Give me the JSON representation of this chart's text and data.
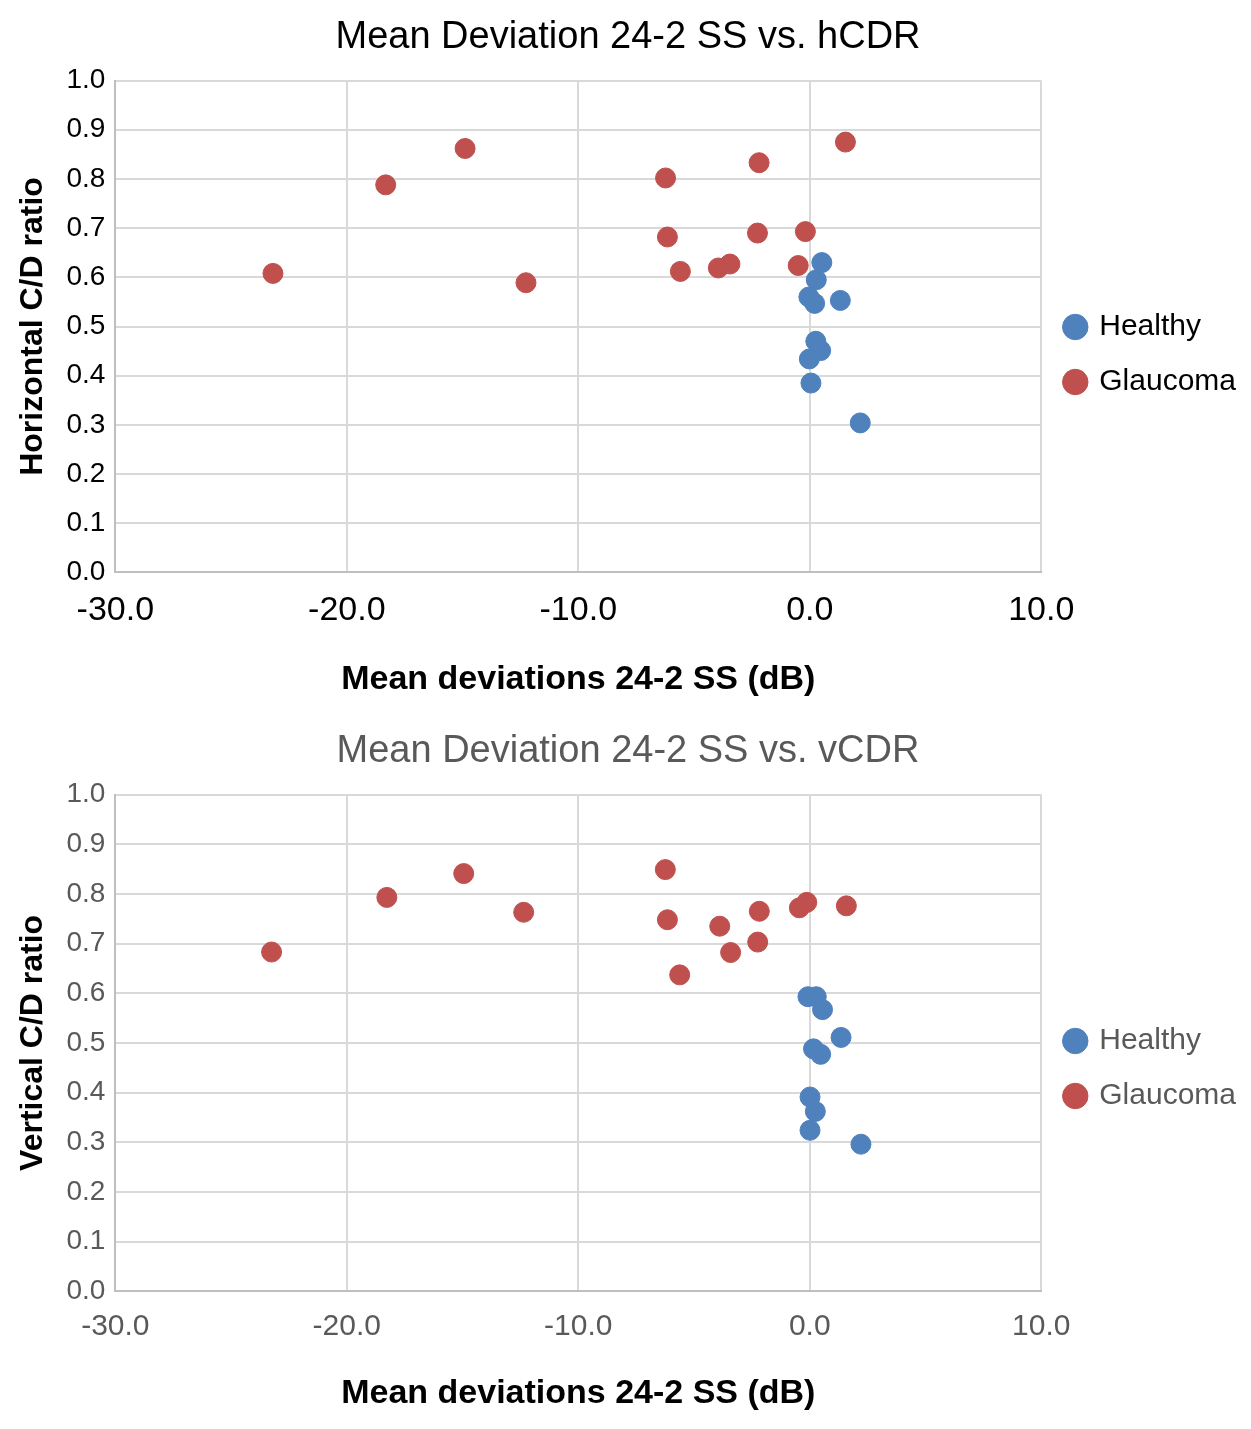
{
  "chart_data": [
    {
      "type": "scatter",
      "title": "Mean Deviation 24-2 SS vs. hCDR",
      "xlabel": "Mean deviations 24-2 SS (dB)",
      "ylabel": "Horizontal C/D ratio",
      "xlim": [
        -30,
        10
      ],
      "xticks": [
        {
          "value": -30,
          "label": "-30.0"
        },
        {
          "value": -20,
          "label": "-20.0"
        },
        {
          "value": -10,
          "label": "-10.0"
        },
        {
          "value": 0,
          "label": "0.0"
        },
        {
          "value": 10,
          "label": "10.0"
        }
      ],
      "ylim": [
        0,
        1
      ],
      "yticks": [
        {
          "value": 0,
          "label": "0.0"
        },
        {
          "value": 0.1,
          "label": "0.1"
        },
        {
          "value": 0.2,
          "label": "0.2"
        },
        {
          "value": 0.3,
          "label": "0.3"
        },
        {
          "value": 0.4,
          "label": "0.4"
        },
        {
          "value": 0.5,
          "label": "0.5"
        },
        {
          "value": 0.6,
          "label": "0.6"
        },
        {
          "value": 0.7,
          "label": "0.7"
        },
        {
          "value": 0.8,
          "label": "0.8"
        },
        {
          "value": 0.9,
          "label": "0.9"
        },
        {
          "value": 1,
          "label": "1.0"
        }
      ],
      "grid": true,
      "legend": "right",
      "marker": "circle",
      "series": [
        {
          "name": "Healthy",
          "color": "#4f81bd",
          "x": [
            0.52,
            0.28,
            -0.04,
            0.21,
            1.32,
            0.26,
            0.47,
            -0.02,
            0.05,
            2.18
          ],
          "values": [
            0.63,
            0.595,
            0.56,
            0.547,
            0.553,
            0.47,
            0.451,
            0.434,
            0.385,
            0.304
          ]
        },
        {
          "name": "Glaucoma",
          "color": "#c0504d",
          "x": [
            -23.19,
            -18.32,
            -14.89,
            -12.26,
            -6.23,
            -6.15,
            -5.59,
            -3.95,
            -3.45,
            -2.19,
            -2.26,
            -0.5,
            -0.19,
            1.54
          ],
          "values": [
            0.608,
            0.788,
            0.862,
            0.589,
            0.802,
            0.682,
            0.612,
            0.619,
            0.627,
            0.833,
            0.69,
            0.624,
            0.693,
            0.875
          ]
        }
      ]
    },
    {
      "type": "scatter",
      "title": "Mean Deviation 24-2 SS vs. vCDR",
      "xlabel": "Mean deviations 24-2 SS (dB)",
      "ylabel": "Vertical C/D ratio",
      "xlim": [
        -30,
        10
      ],
      "xticks": [
        {
          "value": -30,
          "label": "-30.0"
        },
        {
          "value": -20,
          "label": "-20.0"
        },
        {
          "value": -10,
          "label": "-10.0"
        },
        {
          "value": 0,
          "label": "0.0"
        },
        {
          "value": 10,
          "label": "10.0"
        }
      ],
      "ylim": [
        0,
        1
      ],
      "yticks": [
        {
          "value": 0,
          "label": "0.0"
        },
        {
          "value": 0.1,
          "label": "0.1"
        },
        {
          "value": 0.2,
          "label": "0.2"
        },
        {
          "value": 0.3,
          "label": "0.3"
        },
        {
          "value": 0.4,
          "label": "0.4"
        },
        {
          "value": 0.5,
          "label": "0.5"
        },
        {
          "value": 0.6,
          "label": "0.6"
        },
        {
          "value": 0.7,
          "label": "0.7"
        },
        {
          "value": 0.8,
          "label": "0.8"
        },
        {
          "value": 0.9,
          "label": "0.9"
        },
        {
          "value": 1,
          "label": "1.0"
        }
      ],
      "grid": true,
      "legend": "right",
      "marker": "circle",
      "series": [
        {
          "name": "Healthy",
          "color": "#4f81bd",
          "x": [
            0.28,
            -0.08,
            0.55,
            1.35,
            0.16,
            0.47,
            0.01,
            0.24,
            0.01,
            2.21
          ],
          "values": [
            0.593,
            0.593,
            0.567,
            0.511,
            0.488,
            0.477,
            0.391,
            0.362,
            0.324,
            0.296
          ]
        },
        {
          "name": "Glaucoma",
          "color": "#c0504d",
          "x": [
            -6.24,
            -6.15,
            -5.62,
            -3.89,
            -3.42,
            -2.18,
            -2.25,
            -0.45,
            -0.13,
            1.58,
            -23.25,
            -18.27,
            -14.95,
            -12.36
          ],
          "values": [
            0.849,
            0.748,
            0.637,
            0.735,
            0.682,
            0.765,
            0.703,
            0.772,
            0.783,
            0.776,
            0.683,
            0.793,
            0.841,
            0.763
          ]
        }
      ]
    }
  ]
}
